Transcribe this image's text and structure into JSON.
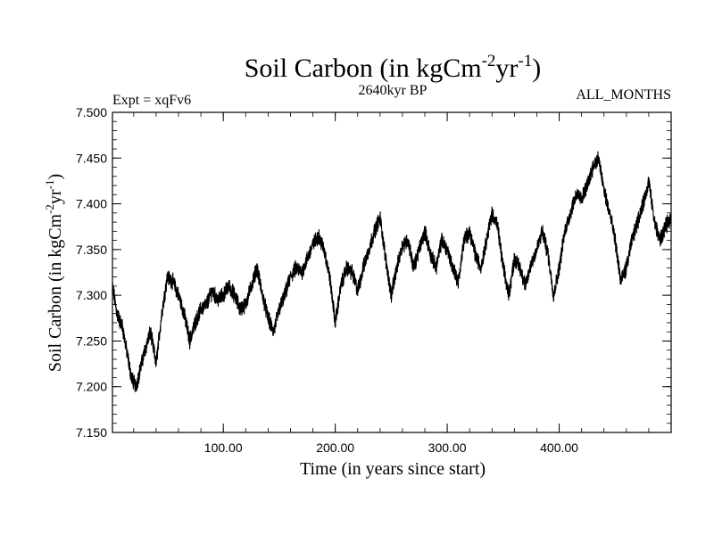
{
  "chart_data": {
    "type": "line",
    "title": "Soil Carbon (in kgCm",
    "title_sup1": "-2",
    "title_mid": "yr",
    "title_sup2": "-1",
    "title_end": ")",
    "subtitle": "2640kyr BP",
    "left_label": "Expt = xqFv6",
    "right_label": "ALL_MONTHS",
    "xlabel": "Time (in years since start)",
    "ylabel": "Soil Carbon (in kgCm",
    "ylabel_sup1": "-2",
    "ylabel_mid": "yr",
    "ylabel_sup2": "-1",
    "ylabel_end": ")",
    "xlim": [
      1,
      500
    ],
    "ylim": [
      7.15,
      7.5
    ],
    "xticks": [
      100,
      200,
      300,
      400
    ],
    "xtick_labels": [
      "100.00",
      "200.00",
      "300.00",
      "400.00"
    ],
    "yticks": [
      7.15,
      7.2,
      7.25,
      7.3,
      7.35,
      7.4,
      7.45,
      7.5
    ],
    "ytick_labels": [
      "7.150",
      "7.200",
      "7.250",
      "7.300",
      "7.350",
      "7.400",
      "7.450",
      "7.500"
    ],
    "series": [
      {
        "name": "Soil Carbon",
        "color": "#000000",
        "x": [
          1,
          5,
          10,
          15,
          18,
          22,
          25,
          30,
          35,
          40,
          45,
          50,
          55,
          60,
          65,
          70,
          75,
          80,
          85,
          90,
          95,
          100,
          105,
          110,
          115,
          120,
          125,
          130,
          135,
          140,
          145,
          150,
          155,
          160,
          165,
          170,
          175,
          180,
          185,
          190,
          195,
          200,
          205,
          210,
          215,
          220,
          225,
          230,
          235,
          240,
          245,
          250,
          255,
          260,
          265,
          270,
          275,
          280,
          285,
          290,
          295,
          300,
          305,
          310,
          315,
          320,
          325,
          330,
          335,
          340,
          345,
          350,
          355,
          360,
          365,
          370,
          375,
          380,
          385,
          390,
          395,
          400,
          405,
          410,
          415,
          420,
          425,
          430,
          435,
          440,
          445,
          450,
          455,
          460,
          465,
          470,
          475,
          480,
          485,
          490,
          495,
          500
        ],
        "y": [
          7.31,
          7.28,
          7.265,
          7.23,
          7.21,
          7.2,
          7.215,
          7.24,
          7.26,
          7.225,
          7.28,
          7.32,
          7.315,
          7.3,
          7.28,
          7.25,
          7.27,
          7.285,
          7.29,
          7.305,
          7.295,
          7.3,
          7.31,
          7.3,
          7.285,
          7.29,
          7.31,
          7.33,
          7.3,
          7.275,
          7.26,
          7.285,
          7.3,
          7.32,
          7.33,
          7.325,
          7.34,
          7.355,
          7.365,
          7.35,
          7.32,
          7.27,
          7.31,
          7.33,
          7.325,
          7.305,
          7.33,
          7.35,
          7.37,
          7.385,
          7.34,
          7.3,
          7.33,
          7.355,
          7.36,
          7.33,
          7.35,
          7.37,
          7.345,
          7.33,
          7.36,
          7.35,
          7.33,
          7.315,
          7.36,
          7.37,
          7.345,
          7.33,
          7.36,
          7.39,
          7.375,
          7.33,
          7.3,
          7.34,
          7.33,
          7.31,
          7.335,
          7.35,
          7.37,
          7.345,
          7.3,
          7.33,
          7.37,
          7.39,
          7.41,
          7.405,
          7.42,
          7.44,
          7.45,
          7.415,
          7.39,
          7.36,
          7.315,
          7.33,
          7.36,
          7.38,
          7.4,
          7.425,
          7.38,
          7.36,
          7.375,
          7.385
        ]
      }
    ]
  }
}
